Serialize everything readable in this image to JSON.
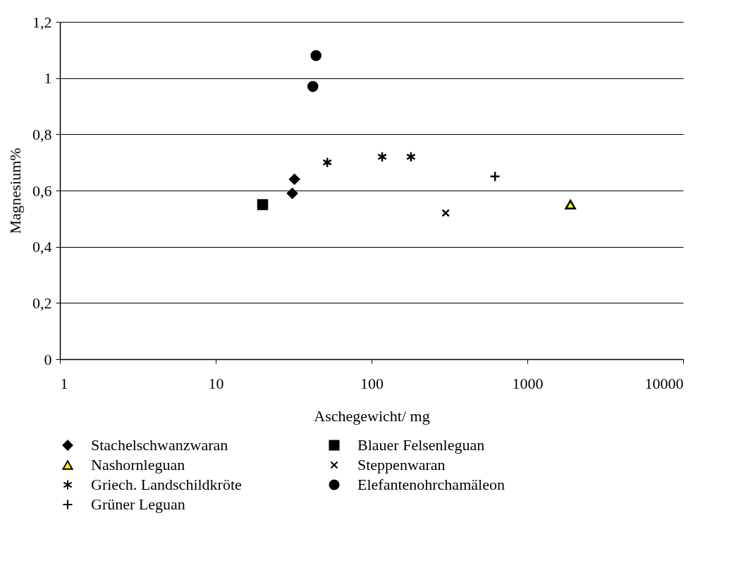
{
  "chart_data": {
    "type": "scatter",
    "xlabel": "Aschegewicht/ mg",
    "ylabel": "Magnesium%",
    "log": "x",
    "grid": "y",
    "legend": "bottom",
    "xlim": [
      1,
      10000
    ],
    "xticks": [
      1,
      10,
      100,
      1000,
      10000
    ],
    "ylim": [
      0,
      1.2
    ],
    "yticks": [
      0,
      {
        "value": 0.2,
        "label": "0,2"
      },
      {
        "value": 0.4,
        "label": "0,4"
      },
      {
        "value": 0.6,
        "label": "0,6"
      },
      {
        "value": 0.8,
        "label": "0,8"
      },
      1,
      {
        "value": 1.2,
        "label": "1,2"
      }
    ],
    "series": [
      {
        "name": "Stachelschwanzwaran",
        "color": "#000000",
        "marker": "diamond",
        "x": [
          32,
          31
        ],
        "values": [
          0.64,
          0.59
        ]
      },
      {
        "name": "Blauer Felsenleguan",
        "color": "#000000",
        "marker": "square",
        "x": [
          20
        ],
        "values": [
          0.55
        ]
      },
      {
        "name": "Nashornleguan",
        "color": "#ffff00",
        "marker": "triangle",
        "x": [
          1890
        ],
        "values": [
          0.55
        ]
      },
      {
        "name": "Steppenwaran",
        "color": "#000000",
        "marker": "cross",
        "x": [
          299
        ],
        "values": [
          0.52
        ]
      },
      {
        "name": "Griech. Landschildkröte",
        "color": "#000000",
        "x": [
          52,
          117,
          179
        ],
        "values": [
          0.7,
          0.72,
          0.72
        ]
      },
      {
        "name": "Elefantenohrchamäleon",
        "color": "#000000",
        "marker": "circle",
        "x": [
          44,
          42
        ],
        "values": [
          1.08,
          0.97
        ]
      },
      {
        "name": "Grüner Leguan",
        "color": "#000000",
        "marker": "plus",
        "x": [
          620
        ],
        "values": [
          0.65
        ]
      }
    ]
  }
}
